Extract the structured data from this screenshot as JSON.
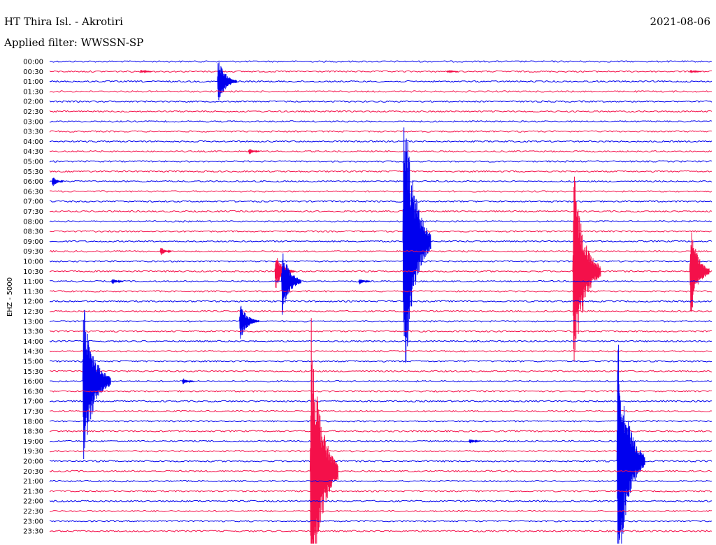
{
  "header": {
    "station": "HT Thira Isl. - Akrotiri",
    "date": "2021-08-06",
    "filter": "Applied filter: WWSSN-SP"
  },
  "colors": {
    "trace_a": "#0000ee",
    "trace_b": "#f4104a",
    "text": "#000000",
    "background": "#ffffff"
  },
  "chart_data": {
    "type": "line",
    "title": "HT Thira Isl. - Akrotiri",
    "subtitle": "Applied filter: WWSSN-SP",
    "ylabel": "EHZ - 5000",
    "xlabel": "",
    "rows": [
      "00:00",
      "00:30",
      "01:00",
      "01:30",
      "02:00",
      "02:30",
      "03:00",
      "03:30",
      "04:00",
      "04:30",
      "05:00",
      "05:30",
      "06:00",
      "06:30",
      "07:00",
      "07:30",
      "08:00",
      "08:30",
      "09:00",
      "09:30",
      "10:00",
      "10:30",
      "11:00",
      "11:30",
      "12:00",
      "12:30",
      "13:00",
      "13:30",
      "14:00",
      "14:30",
      "15:00",
      "15:30",
      "16:00",
      "16:30",
      "17:00",
      "17:30",
      "18:00",
      "18:30",
      "19:00",
      "19:30",
      "20:00",
      "20:30",
      "21:00",
      "21:30",
      "22:00",
      "22:30",
      "23:00",
      "23:30"
    ],
    "row_minutes": 30,
    "x_range_minutes": [
      0,
      30
    ],
    "legend": "none",
    "grid": false,
    "events": [
      {
        "row": "00:30",
        "minute": 4.1,
        "amplitude": 3
      },
      {
        "row": "00:30",
        "minute": 18.0,
        "amplitude": 2
      },
      {
        "row": "00:30",
        "minute": 29.0,
        "amplitude": 3
      },
      {
        "row": "01:00",
        "minute": 7.6,
        "amplitude": 40
      },
      {
        "row": "04:30",
        "minute": 9.0,
        "amplitude": 6
      },
      {
        "row": "06:00",
        "minute": 0.1,
        "amplitude": 10
      },
      {
        "row": "09:00",
        "minute": 16.0,
        "amplitude": 260
      },
      {
        "row": "09:30",
        "minute": 5.0,
        "amplitude": 8
      },
      {
        "row": "10:30",
        "minute": 10.2,
        "amplitude": 30
      },
      {
        "row": "10:30",
        "minute": 23.7,
        "amplitude": 170
      },
      {
        "row": "10:30",
        "minute": 29.0,
        "amplitude": 80
      },
      {
        "row": "11:00",
        "minute": 2.8,
        "amplitude": 6
      },
      {
        "row": "11:00",
        "minute": 10.5,
        "amplitude": 60
      },
      {
        "row": "11:00",
        "minute": 14.0,
        "amplitude": 6
      },
      {
        "row": "13:00",
        "minute": 8.6,
        "amplitude": 30
      },
      {
        "row": "16:00",
        "minute": 1.5,
        "amplitude": 130
      },
      {
        "row": "16:00",
        "minute": 6.0,
        "amplitude": 6
      },
      {
        "row": "19:00",
        "minute": 19.0,
        "amplitude": 5
      },
      {
        "row": "20:30",
        "minute": 11.8,
        "amplitude": 250
      },
      {
        "row": "20:00",
        "minute": 25.7,
        "amplitude": 200
      }
    ]
  }
}
